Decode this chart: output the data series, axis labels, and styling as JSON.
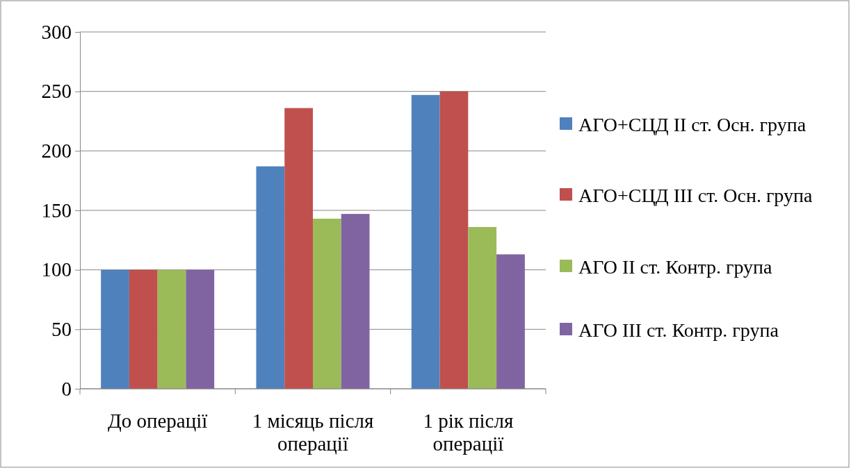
{
  "chart_data": {
    "type": "bar",
    "categories": [
      "До операції",
      "1 місяць після операції",
      "1 рік після операції"
    ],
    "series": [
      {
        "name": "АГО+СЦД ІІ ст. Осн. група",
        "color": "#4f81bd",
        "values": [
          100,
          187,
          247
        ]
      },
      {
        "name": "АГО+СЦД ІІІ ст. Осн. група",
        "color": "#c0504d",
        "values": [
          100,
          236,
          250
        ]
      },
      {
        "name": "АГО ІІ ст. Контр. група",
        "color": "#9bbb59",
        "values": [
          100,
          143,
          136
        ]
      },
      {
        "name": "АГО ІІІ ст. Контр. група",
        "color": "#8064a2",
        "values": [
          100,
          147,
          113
        ]
      }
    ],
    "ylim": [
      0,
      300
    ],
    "yticks": [
      0,
      50,
      100,
      150,
      200,
      250,
      300
    ],
    "grid": "y",
    "legend": "right"
  }
}
